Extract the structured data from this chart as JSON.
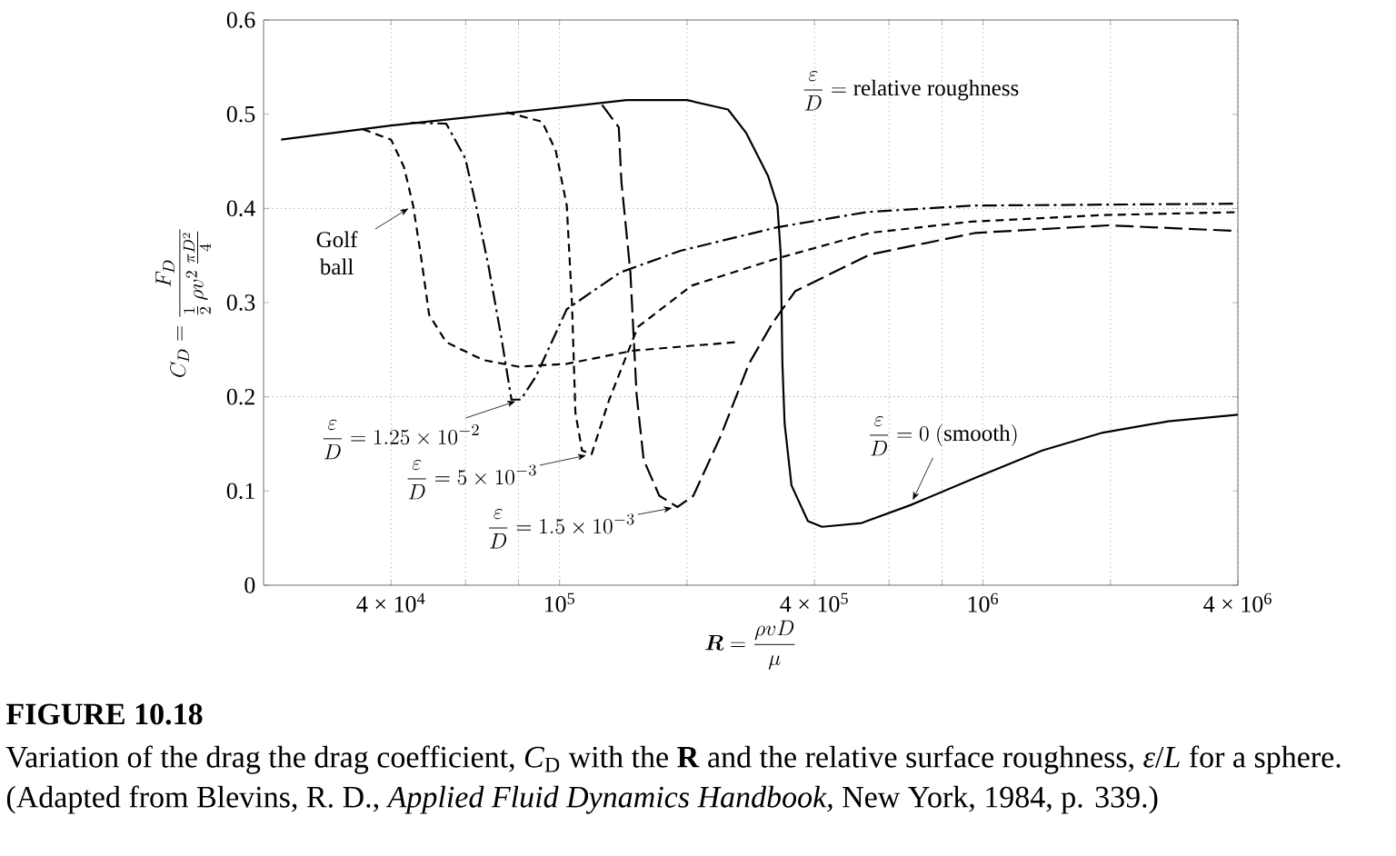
{
  "chart_data": {
    "type": "line",
    "xlabel": "\\boldsymbol{R} = \\frac{\\rho v D}{\\mu}",
    "ylabel": "C_D = \\frac{F_D}{\\frac{1}{2}\\,\\rho v^2\\,\\frac{\\pi D^2}{4}}",
    "log": "x",
    "grid": "x",
    "xlim": [
      20000,
      4000000
    ],
    "ylim": [
      0,
      0.6
    ],
    "xticks": [
      {
        "value": 40000,
        "label": "4 × 10$^{4}$"
      },
      {
        "value": 60000,
        "label": null
      },
      {
        "value": 80000,
        "label": null
      },
      {
        "value": 100000,
        "label": "10$^{5}$"
      },
      {
        "value": 200000,
        "label": null
      },
      {
        "value": 400000,
        "label": "4 × 10$^{5}$"
      },
      {
        "value": 600000,
        "label": null
      },
      {
        "value": 800000,
        "label": null
      },
      {
        "value": 1000000,
        "label": "10$^{6}$"
      },
      {
        "value": 2000000,
        "label": null
      },
      {
        "value": 4000000,
        "label": "4 × 10$^{6}$"
      }
    ],
    "yticks": [
      0,
      0.1,
      0.2,
      0.3,
      0.4,
      0.5,
      0.6
    ],
    "ref_lines": [
      {
        "axis": "y",
        "value": 0.2,
        "line_style": "dotted"
      },
      {
        "axis": "y",
        "value": 0.4,
        "line_style": "dotted"
      }
    ],
    "series": [
      {
        "color": "#000000",
        "line_style": "solid",
        "x": [
          22000,
          40000,
          100000,
          144000,
          200000,
          250000,
          276000,
          311000,
          327000,
          333000,
          336000,
          340000,
          353000,
          386000,
          417000,
          517000,
          674000,
          960000,
          1380000,
          1920000,
          2740000,
          4000000
        ],
        "values": [
          0.473,
          0.488,
          0.507,
          0.515,
          0.515,
          0.505,
          0.48,
          0.434,
          0.403,
          0.351,
          0.235,
          0.172,
          0.106,
          0.068,
          0.062,
          0.066,
          0.085,
          0.114,
          0.143,
          0.162,
          0.174,
          0.181
        ]
      },
      {
        "color": "#000000",
        "line_style": "dashed",
        "x": [
          34300,
          40000,
          42900,
          45100,
          47000,
          49200,
          54000,
          66000,
          80000,
          104000,
          149000,
          260000
        ],
        "values": [
          0.484,
          0.473,
          0.444,
          0.403,
          0.351,
          0.287,
          0.258,
          0.239,
          0.232,
          0.235,
          0.249,
          0.258
        ]
      },
      {
        "color": "#000000",
        "line_style": "dashdot",
        "x": [
          44600,
          54000,
          59900,
          63500,
          68000,
          73000,
          77000,
          81000,
          88000,
          104000,
          139000,
          193000,
          327000,
          530000,
          940000,
          4000000
        ],
        "values": [
          0.491,
          0.49,
          0.453,
          0.403,
          0.338,
          0.261,
          0.197,
          0.197,
          0.222,
          0.293,
          0.332,
          0.355,
          0.38,
          0.396,
          0.403,
          0.405
        ]
      },
      {
        "color": "#000000",
        "line_style": "dashed",
        "x": [
          75000,
          91000,
          98000,
          104000,
          107000,
          109000,
          113000,
          119000,
          131000,
          153000,
          205000,
          327000,
          540000,
          940000,
          1940000,
          4000000
        ],
        "values": [
          0.502,
          0.492,
          0.461,
          0.403,
          0.299,
          0.183,
          0.143,
          0.139,
          0.197,
          0.274,
          0.318,
          0.347,
          0.374,
          0.386,
          0.393,
          0.396
        ]
      },
      {
        "color": "#000000",
        "line_style": "longdash",
        "x": [
          126000,
          138000,
          140000,
          147000,
          152000,
          158000,
          172000,
          190000,
          207000,
          240000,
          280000,
          318000,
          360000,
          540000,
          960000,
          1980000,
          4000000
        ],
        "values": [
          0.51,
          0.486,
          0.428,
          0.332,
          0.203,
          0.133,
          0.095,
          0.083,
          0.095,
          0.158,
          0.235,
          0.278,
          0.312,
          0.351,
          0.374,
          0.382,
          0.376
        ]
      }
    ],
    "annotations": [
      {
        "text": "Golf ball",
        "x": 45100,
        "y": 0.403
      },
      {
        "text": "\\frac{\\varepsilon}{D} = 1.25 \\times 10^{-2}",
        "x": 81000,
        "y": 0.197
      },
      {
        "text": "\\frac{\\varepsilon}{D} = 5 \\times 10^{-3}",
        "x": 119000,
        "y": 0.139
      },
      {
        "text": "\\frac{\\varepsilon}{D} = 1.5 \\times 10^{-3}",
        "x": 190000,
        "y": 0.083
      },
      {
        "text": "\\frac{\\varepsilon}{D} = 0\\ \\mathrm{(smooth)}",
        "x": 674000,
        "y": 0.085
      },
      "\\frac{\\varepsilon}{D} = \\mathrm{relative\\ roughness}",
      "FIGURE 10.18",
      "Variation of the drag the drag coefficient, *C*$_{D}$ with the **R** and the relative surface roughness, *ε*/*L* for a sphere.",
      "(Adapted from Blevins, R. D., *Applied Fluid Dynamics Handbook,* New York, 1984, p. 339.)"
    ]
  }
}
